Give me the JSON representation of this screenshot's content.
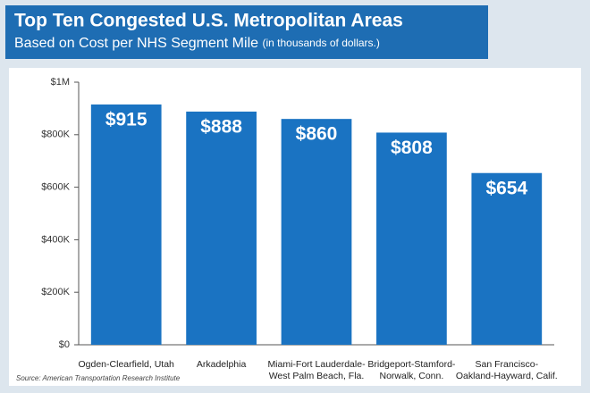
{
  "chart_data": {
    "type": "bar",
    "title": "Top Ten Congested U.S. Metropolitan Areas",
    "subtitle": "Based on Cost per NHS Segment Mile",
    "subtitle_note": "(in thousands of dollars.)",
    "source": "Source: American Transportation Research Institute",
    "categories": [
      [
        "Ogden-Clearfield, Utah"
      ],
      [
        "Arkadelphia"
      ],
      [
        "Miami-Fort Lauderdale-",
        "West Palm Beach, Fla."
      ],
      [
        "Bridgeport-Stamford-",
        "Norwalk, Conn."
      ],
      [
        "San Francisco-",
        "Oakland-Hayward, Calif."
      ]
    ],
    "values": [
      915000,
      888000,
      860000,
      808000,
      654000
    ],
    "value_labels": [
      "$915",
      "$888",
      "$860",
      "$808",
      "$654"
    ],
    "color": "#1a73c2",
    "ylim": [
      0,
      1000000
    ],
    "yticks": [
      {
        "value": 0,
        "label": "$0"
      },
      {
        "value": 200000,
        "label": "$200K"
      },
      {
        "value": 400000,
        "label": "$400K"
      },
      {
        "value": 600000,
        "label": "$600K"
      },
      {
        "value": 800000,
        "label": "$800K"
      },
      {
        "value": 1000000,
        "label": "$1M"
      }
    ],
    "grid": false
  }
}
